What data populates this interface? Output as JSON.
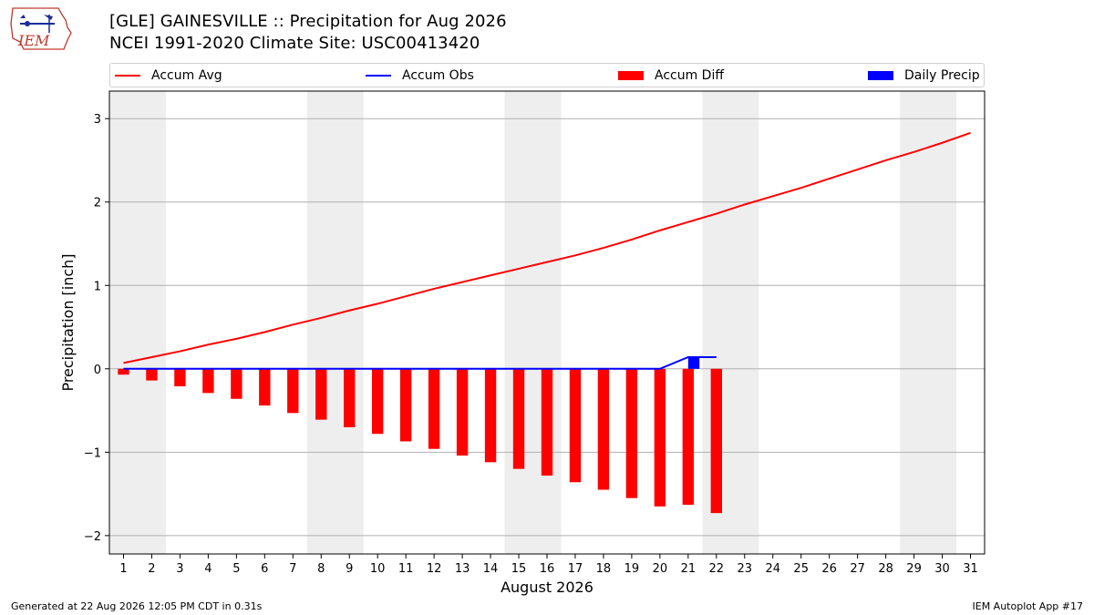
{
  "header": {
    "logo_text": "IEM",
    "title_line1": "[GLE] GAINESVILLE :: Precipitation for Aug 2026",
    "title_line2": "NCEI 1991-2020 Climate Site: USC00413420"
  },
  "legend": {
    "accum_avg": "Accum Avg",
    "accum_obs": "Accum Obs",
    "accum_diff": "Accum Diff",
    "daily_precip": "Daily Precip"
  },
  "colors": {
    "accum_avg": "#ff0000",
    "accum_obs": "#0000ff",
    "accum_diff": "#ff0000",
    "daily_precip": "#0000ff",
    "weekend_shade": "#eeeeee",
    "grid": "#b0b0b0"
  },
  "footer": {
    "generated": "Generated at 22 Aug 2026 12:05 PM CDT in 0.31s",
    "app": "IEM Autoplot App #17"
  },
  "chart_data": {
    "type": "bar",
    "xlabel": "August 2026",
    "ylabel": "Precipitation [inch]",
    "ylim": [
      -2.22,
      3.33
    ],
    "xlim": [
      0.5,
      31.5
    ],
    "yticks": [
      -2,
      -1,
      0,
      1,
      2,
      3
    ],
    "ytick_labels": [
      "−2",
      "−1",
      "0",
      "1",
      "2",
      "3"
    ],
    "x": [
      1,
      2,
      3,
      4,
      5,
      6,
      7,
      8,
      9,
      10,
      11,
      12,
      13,
      14,
      15,
      16,
      17,
      18,
      19,
      20,
      21,
      22,
      23,
      24,
      25,
      26,
      27,
      28,
      29,
      30,
      31
    ],
    "x_tick_labels": [
      "1",
      "2",
      "3",
      "4",
      "5",
      "6",
      "7",
      "8",
      "9",
      "10",
      "11",
      "12",
      "13",
      "14",
      "15",
      "16",
      "17",
      "18",
      "19",
      "20",
      "21",
      "22",
      "23",
      "24",
      "25",
      "26",
      "27",
      "28",
      "29",
      "30",
      "31"
    ],
    "weekend_days": [
      [
        1,
        2
      ],
      [
        8,
        9
      ],
      [
        15,
        16
      ],
      [
        22,
        23
      ],
      [
        29,
        30
      ]
    ],
    "grid": true,
    "legend_position": "top",
    "series": [
      {
        "name": "Accum Avg",
        "kind": "line",
        "x": [
          1,
          2,
          3,
          4,
          5,
          6,
          7,
          8,
          9,
          10,
          11,
          12,
          13,
          14,
          15,
          16,
          17,
          18,
          19,
          20,
          21,
          22,
          23,
          24,
          25,
          26,
          27,
          28,
          29,
          30,
          31
        ],
        "values": [
          0.07,
          0.14,
          0.21,
          0.29,
          0.36,
          0.44,
          0.53,
          0.61,
          0.7,
          0.78,
          0.87,
          0.96,
          1.04,
          1.12,
          1.2,
          1.28,
          1.36,
          1.45,
          1.55,
          1.66,
          1.76,
          1.86,
          1.97,
          2.07,
          2.17,
          2.28,
          2.39,
          2.5,
          2.6,
          2.71,
          2.83
        ]
      },
      {
        "name": "Accum Obs",
        "kind": "line",
        "x": [
          1,
          2,
          3,
          4,
          5,
          6,
          7,
          8,
          9,
          10,
          11,
          12,
          13,
          14,
          15,
          16,
          17,
          18,
          19,
          20,
          21,
          22
        ],
        "values": [
          0,
          0,
          0,
          0,
          0,
          0,
          0,
          0,
          0,
          0,
          0,
          0,
          0,
          0,
          0,
          0,
          0,
          0,
          0,
          0,
          0.14,
          0.14
        ]
      },
      {
        "name": "Accum Diff",
        "kind": "bar",
        "x": [
          1,
          2,
          3,
          4,
          5,
          6,
          7,
          8,
          9,
          10,
          11,
          12,
          13,
          14,
          15,
          16,
          17,
          18,
          19,
          20,
          21,
          22
        ],
        "values": [
          -0.07,
          -0.14,
          -0.21,
          -0.29,
          -0.36,
          -0.44,
          -0.53,
          -0.61,
          -0.7,
          -0.78,
          -0.87,
          -0.96,
          -1.04,
          -1.12,
          -1.2,
          -1.28,
          -1.36,
          -1.45,
          -1.55,
          -1.65,
          -1.63,
          -1.73
        ]
      },
      {
        "name": "Daily Precip",
        "kind": "bar",
        "x": [
          21
        ],
        "values": [
          0.14
        ]
      }
    ]
  }
}
